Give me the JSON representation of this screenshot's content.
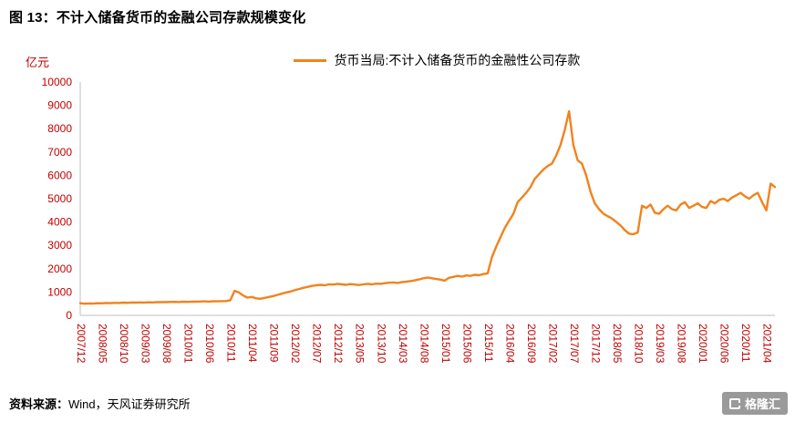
{
  "page": {
    "title": "图 13：不计入储备货币的金融公司存款规模变化",
    "source_label": "资料来源：",
    "source_text": "Wind，天风证券研究所",
    "logo_text": "格隆汇"
  },
  "chart_data": {
    "type": "line",
    "title": "图 13：不计入储备货币的金融公司存款规模变化",
    "y_unit": "亿元",
    "ylim": [
      0,
      10000
    ],
    "y_ticks": [
      0,
      1000,
      2000,
      3000,
      4000,
      5000,
      6000,
      7000,
      8000,
      9000,
      10000
    ],
    "x_tick_interval": 5,
    "x_tick_labels": [
      "2007/12",
      "2008/05",
      "2008/10",
      "2009/03",
      "2009/08",
      "2010/01",
      "2010/06",
      "2010/11",
      "2011/04",
      "2011/09",
      "2012/02",
      "2012/07",
      "2012/12",
      "2013/05",
      "2013/10",
      "2014/03",
      "2014/08",
      "2015/01",
      "2015/06",
      "2015/11",
      "2016/04",
      "2016/09",
      "2017/02",
      "2017/07",
      "2017/12",
      "2018/05",
      "2018/10",
      "2019/03",
      "2019/08",
      "2020/01",
      "2020/06",
      "2020/11",
      "2021/04"
    ],
    "legend_position": "top",
    "line_color": "#F0831E",
    "axis_label_color": "#C00000",
    "grid": false,
    "x_start": "2007/12",
    "x_frequency": "monthly",
    "series": [
      {
        "name": "货币当局:不计入储备货币的金融性公司存款",
        "values": [
          520,
          500,
          510,
          505,
          520,
          515,
          530,
          525,
          535,
          530,
          545,
          540,
          550,
          545,
          555,
          550,
          560,
          555,
          565,
          570,
          565,
          575,
          580,
          570,
          585,
          580,
          590,
          585,
          595,
          600,
          590,
          605,
          600,
          610,
          615,
          650,
          1050,
          980,
          850,
          760,
          790,
          730,
          710,
          750,
          790,
          830,
          880,
          930,
          980,
          1020,
          1080,
          1130,
          1180,
          1220,
          1260,
          1290,
          1310,
          1290,
          1330,
          1320,
          1350,
          1330,
          1310,
          1340,
          1320,
          1300,
          1330,
          1350,
          1330,
          1360,
          1350,
          1380,
          1400,
          1410,
          1390,
          1420,
          1440,
          1470,
          1500,
          1540,
          1590,
          1620,
          1590,
          1560,
          1530,
          1490,
          1610,
          1650,
          1690,
          1660,
          1710,
          1690,
          1740,
          1720,
          1770,
          1800,
          2500,
          2950,
          3350,
          3750,
          4050,
          4350,
          4850,
          5050,
          5250,
          5500,
          5850,
          6050,
          6250,
          6400,
          6500,
          6850,
          7300,
          7950,
          8750,
          7300,
          6650,
          6500,
          6000,
          5300,
          4800,
          4550,
          4350,
          4250,
          4150,
          4000,
          3850,
          3650,
          3500,
          3480,
          3550,
          4700,
          4600,
          4750,
          4400,
          4350,
          4550,
          4700,
          4550,
          4500,
          4750,
          4850,
          4600,
          4700,
          4800,
          4650,
          4600,
          4900,
          4800,
          4950,
          5000,
          4900,
          5050,
          5150,
          5250,
          5100,
          5000,
          5150,
          5250,
          4850,
          4500,
          5650,
          5500
        ]
      }
    ]
  }
}
